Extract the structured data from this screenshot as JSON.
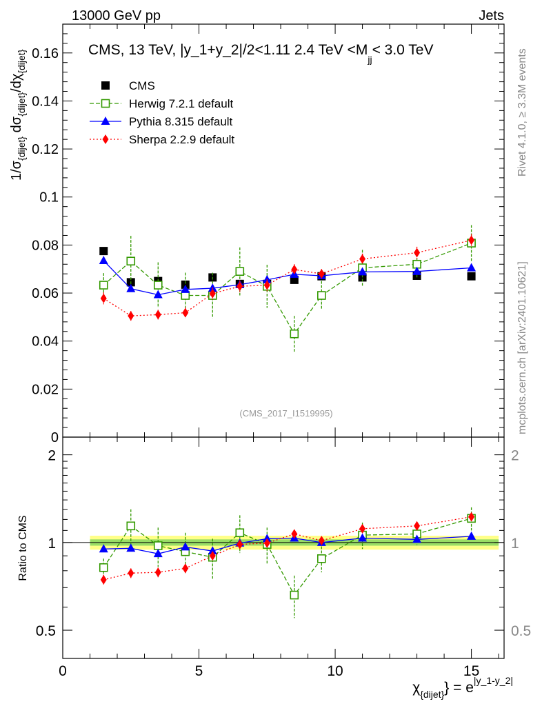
{
  "header": {
    "energy_label": "13000 GeV pp",
    "category_label": "Jets",
    "rivet_label": "Rivet 4.1.0, ≥ 3.3M events",
    "site_label": "mcplots.cern.ch [arXiv:2401.10621]",
    "analysis_id": "(CMS_2017_I1519995)"
  },
  "colors": {
    "cms": "#000000",
    "herwig": "#339900",
    "pythia": "#0000ff",
    "sherpa": "#ff0000",
    "band_inner": "#99dd66",
    "band_outer": "#ffff88"
  },
  "chart_data": [
    {
      "type": "scatter",
      "title": "CMS, 13 TeV, |y_1+y_2|/2<1.11 2.4 TeV <M",
      "title_sub": "jj",
      "title_tail": "< 3.0 TeV",
      "ylabel": "1/σ",
      "ylabel_parts": [
        "1/σ",
        "{dijet}",
        " dσ",
        "{dijet}",
        "/dχ",
        "{dijet}"
      ],
      "xlim": [
        0,
        16.2
      ],
      "ylim": [
        0,
        0.172
      ],
      "yticks": [
        0,
        0.02,
        0.04,
        0.06,
        0.08,
        0.1,
        0.12,
        0.14,
        0.16
      ],
      "ytick_labels": [
        "0",
        "0.02",
        "0.04",
        "0.06",
        "0.08",
        "0.1",
        "0.12",
        "0.14",
        "0.16"
      ],
      "x": [
        1.5,
        2.5,
        3.5,
        4.5,
        5.5,
        6.5,
        7.5,
        8.5,
        9.5,
        11,
        13,
        15
      ],
      "series": [
        {
          "name": "CMS",
          "key": "cms",
          "values": [
            0.0775,
            0.0645,
            0.065,
            0.0635,
            0.0665,
            0.0638,
            0.0638,
            0.0655,
            0.067,
            0.0665,
            0.0672,
            0.067
          ]
        },
        {
          "name": "Herwig 7.2.1 default",
          "key": "herwig",
          "values": [
            0.0633,
            0.0733,
            0.0633,
            0.059,
            0.059,
            0.069,
            0.0628,
            0.043,
            0.059,
            0.0705,
            0.072,
            0.0808
          ],
          "errors": [
            0.005,
            0.0105,
            0.0095,
            0.0095,
            0.0095,
            0.01,
            0.009,
            0.0075,
            0.006,
            0.0075,
            0.006,
            0.0075
          ]
        },
        {
          "name": "Pythia 8.315 default",
          "key": "pythia",
          "values": [
            0.0735,
            0.0618,
            0.0593,
            0.0615,
            0.062,
            0.0635,
            0.0655,
            0.0678,
            0.0672,
            0.0688,
            0.069,
            0.0705
          ]
        },
        {
          "name": "Sherpa 2.2.9 default",
          "key": "sherpa",
          "values": [
            0.0578,
            0.0505,
            0.051,
            0.0518,
            0.0598,
            0.0628,
            0.0633,
            0.0698,
            0.068,
            0.0742,
            0.0768,
            0.082
          ],
          "errors": [
            0.0025,
            0.002,
            0.002,
            0.0022,
            0.0025,
            0.0025,
            0.0025,
            0.0022,
            0.002,
            0.0022,
            0.0025,
            0.0025
          ]
        }
      ]
    },
    {
      "type": "scatter",
      "ylabel": "Ratio to CMS",
      "xlabel": "χ",
      "xlabel_parts": [
        "χ",
        "{dijet}",
        "} = e",
        "|y_1-y_2|"
      ],
      "xlim": [
        0,
        16.2
      ],
      "ylim": [
        0.4,
        2.3
      ],
      "log_y": true,
      "yticks": [
        0.5,
        1,
        2
      ],
      "ytick_labels": [
        "0.5",
        "1",
        "2"
      ],
      "xticks": [
        0,
        5,
        10,
        15
      ],
      "xtick_labels": [
        "0",
        "5",
        "10",
        "15"
      ],
      "band": {
        "x": [
          1,
          16
        ],
        "inner": [
          0.975,
          1.025
        ],
        "outer": [
          0.945,
          1.055
        ]
      },
      "x": [
        1.5,
        2.5,
        3.5,
        4.5,
        5.5,
        6.5,
        7.5,
        8.5,
        9.5,
        11,
        13,
        15
      ],
      "series": [
        {
          "name": "Herwig 7.2.1 default",
          "key": "herwig",
          "values": [
            0.82,
            1.14,
            0.975,
            0.93,
            0.89,
            1.08,
            0.985,
            0.66,
            0.88,
            1.06,
            1.07,
            1.21
          ],
          "errors": [
            0.06,
            0.16,
            0.15,
            0.15,
            0.14,
            0.16,
            0.14,
            0.11,
            0.09,
            0.11,
            0.09,
            0.11
          ]
        },
        {
          "name": "Pythia 8.315 default",
          "key": "pythia",
          "values": [
            0.95,
            0.955,
            0.915,
            0.965,
            0.935,
            0.995,
            1.03,
            1.035,
            1.0,
            1.035,
            1.025,
            1.05
          ]
        },
        {
          "name": "Sherpa 2.2.9 default",
          "key": "sherpa",
          "values": [
            0.745,
            0.785,
            0.79,
            0.815,
            0.9,
            0.985,
            0.995,
            1.07,
            1.015,
            1.115,
            1.14,
            1.225
          ],
          "errors": [
            0.03,
            0.03,
            0.03,
            0.03,
            0.03,
            0.03,
            0.03,
            0.03,
            0.03,
            0.03,
            0.03,
            0.03
          ]
        }
      ]
    }
  ]
}
